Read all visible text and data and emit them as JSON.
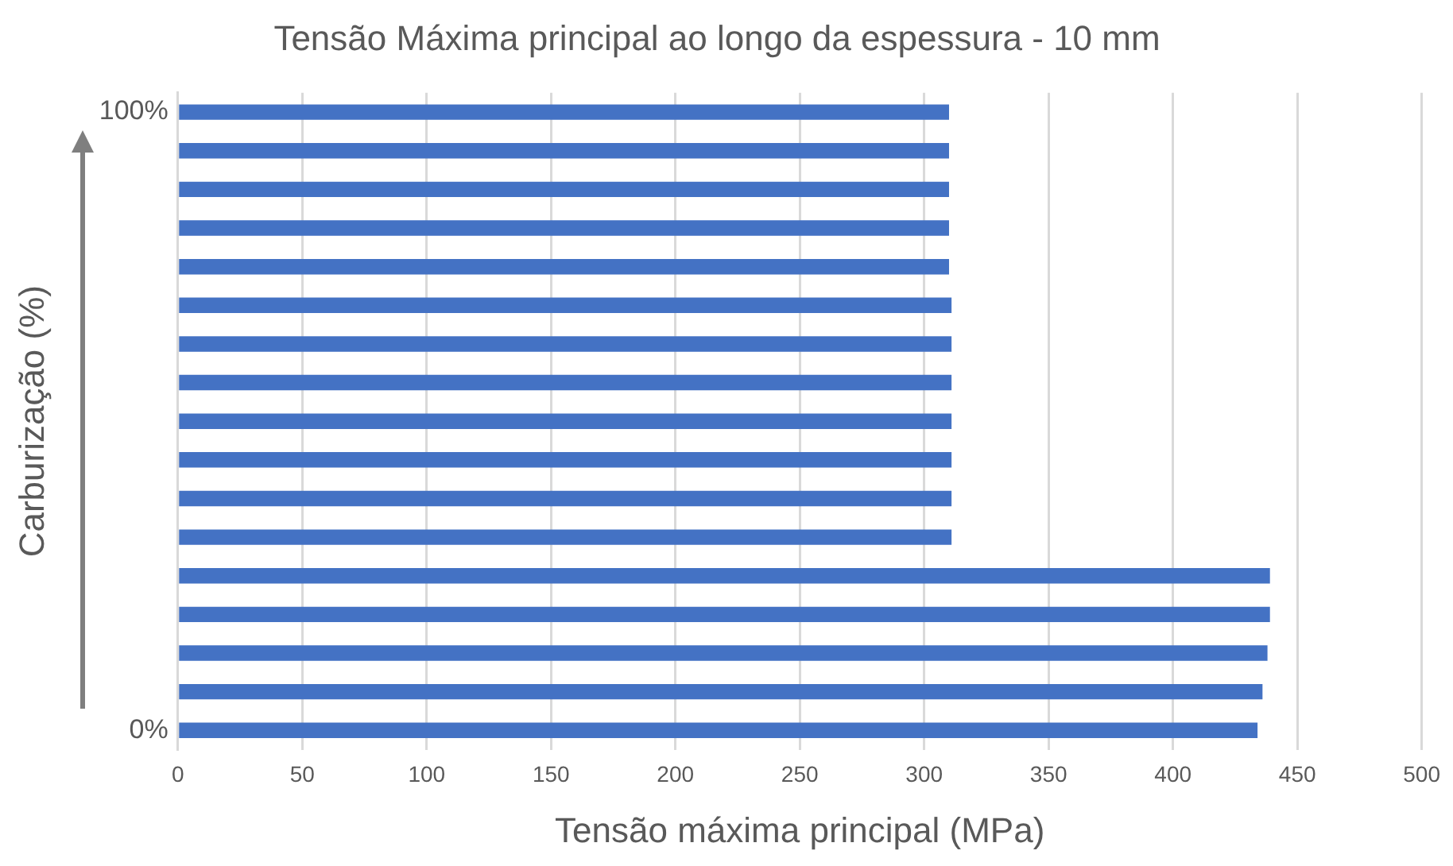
{
  "chart_data": {
    "type": "bar",
    "orientation": "horizontal",
    "title": "Tensão Máxima principal ao longo da espessura - 10 mm",
    "xlabel": "Tensão máxima principal (MPa)",
    "ylabel": "Carburização (%)",
    "categories": [
      "100%",
      null,
      null,
      null,
      null,
      null,
      null,
      null,
      null,
      null,
      null,
      null,
      null,
      null,
      null,
      null,
      "0%"
    ],
    "values": [
      310,
      310,
      310,
      310,
      310,
      311,
      311,
      311,
      311,
      311,
      311,
      311,
      439,
      439,
      438,
      436,
      434
    ],
    "color": "#4472c4",
    "xlim": [
      0,
      500
    ],
    "xticks": [
      0,
      50,
      100,
      150,
      200,
      250,
      300,
      350,
      400,
      450,
      500
    ],
    "grid": "x",
    "legend": false
  }
}
